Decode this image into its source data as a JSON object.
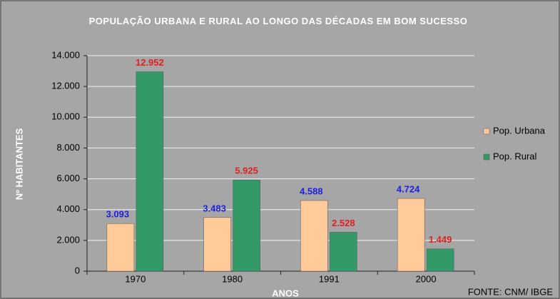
{
  "chart_data": {
    "type": "bar",
    "title": "POPULAÇÃO URBANA E RURAL AO LONGO DAS DÉCADAS EM BOM SUCESSO",
    "x_label": "ANOS",
    "y_label": "Nº HABITANTES",
    "source": "FONTE: CNM/ IBGE",
    "categories": [
      "1970",
      "1980",
      "1991",
      "2000"
    ],
    "series": [
      {
        "name": "Pop. Urbana",
        "color": "#ffcc99",
        "label_color": "#1f1fe0",
        "values": [
          3093,
          3483,
          4588,
          4724
        ],
        "value_labels": [
          "3.093",
          "3.483",
          "4.588",
          "4.724"
        ]
      },
      {
        "name": "Pop. Rural",
        "color": "#339966",
        "label_color": "#e01f1f",
        "values": [
          12952,
          5925,
          2528,
          1449
        ],
        "value_labels": [
          "12.952",
          "5.925",
          "2.528",
          "1.449"
        ]
      }
    ],
    "ylim": [
      0,
      14000
    ],
    "yticks": [
      {
        "value": 0,
        "label": "0"
      },
      {
        "value": 2000,
        "label": "2.000"
      },
      {
        "value": 4000,
        "label": "4.000"
      },
      {
        "value": 6000,
        "label": "6.000"
      },
      {
        "value": 8000,
        "label": "8.000"
      },
      {
        "value": 10000,
        "label": "10.000"
      },
      {
        "value": 12000,
        "label": "12.000"
      },
      {
        "value": 14000,
        "label": "14.000"
      }
    ],
    "grid": true,
    "legend": "right"
  }
}
